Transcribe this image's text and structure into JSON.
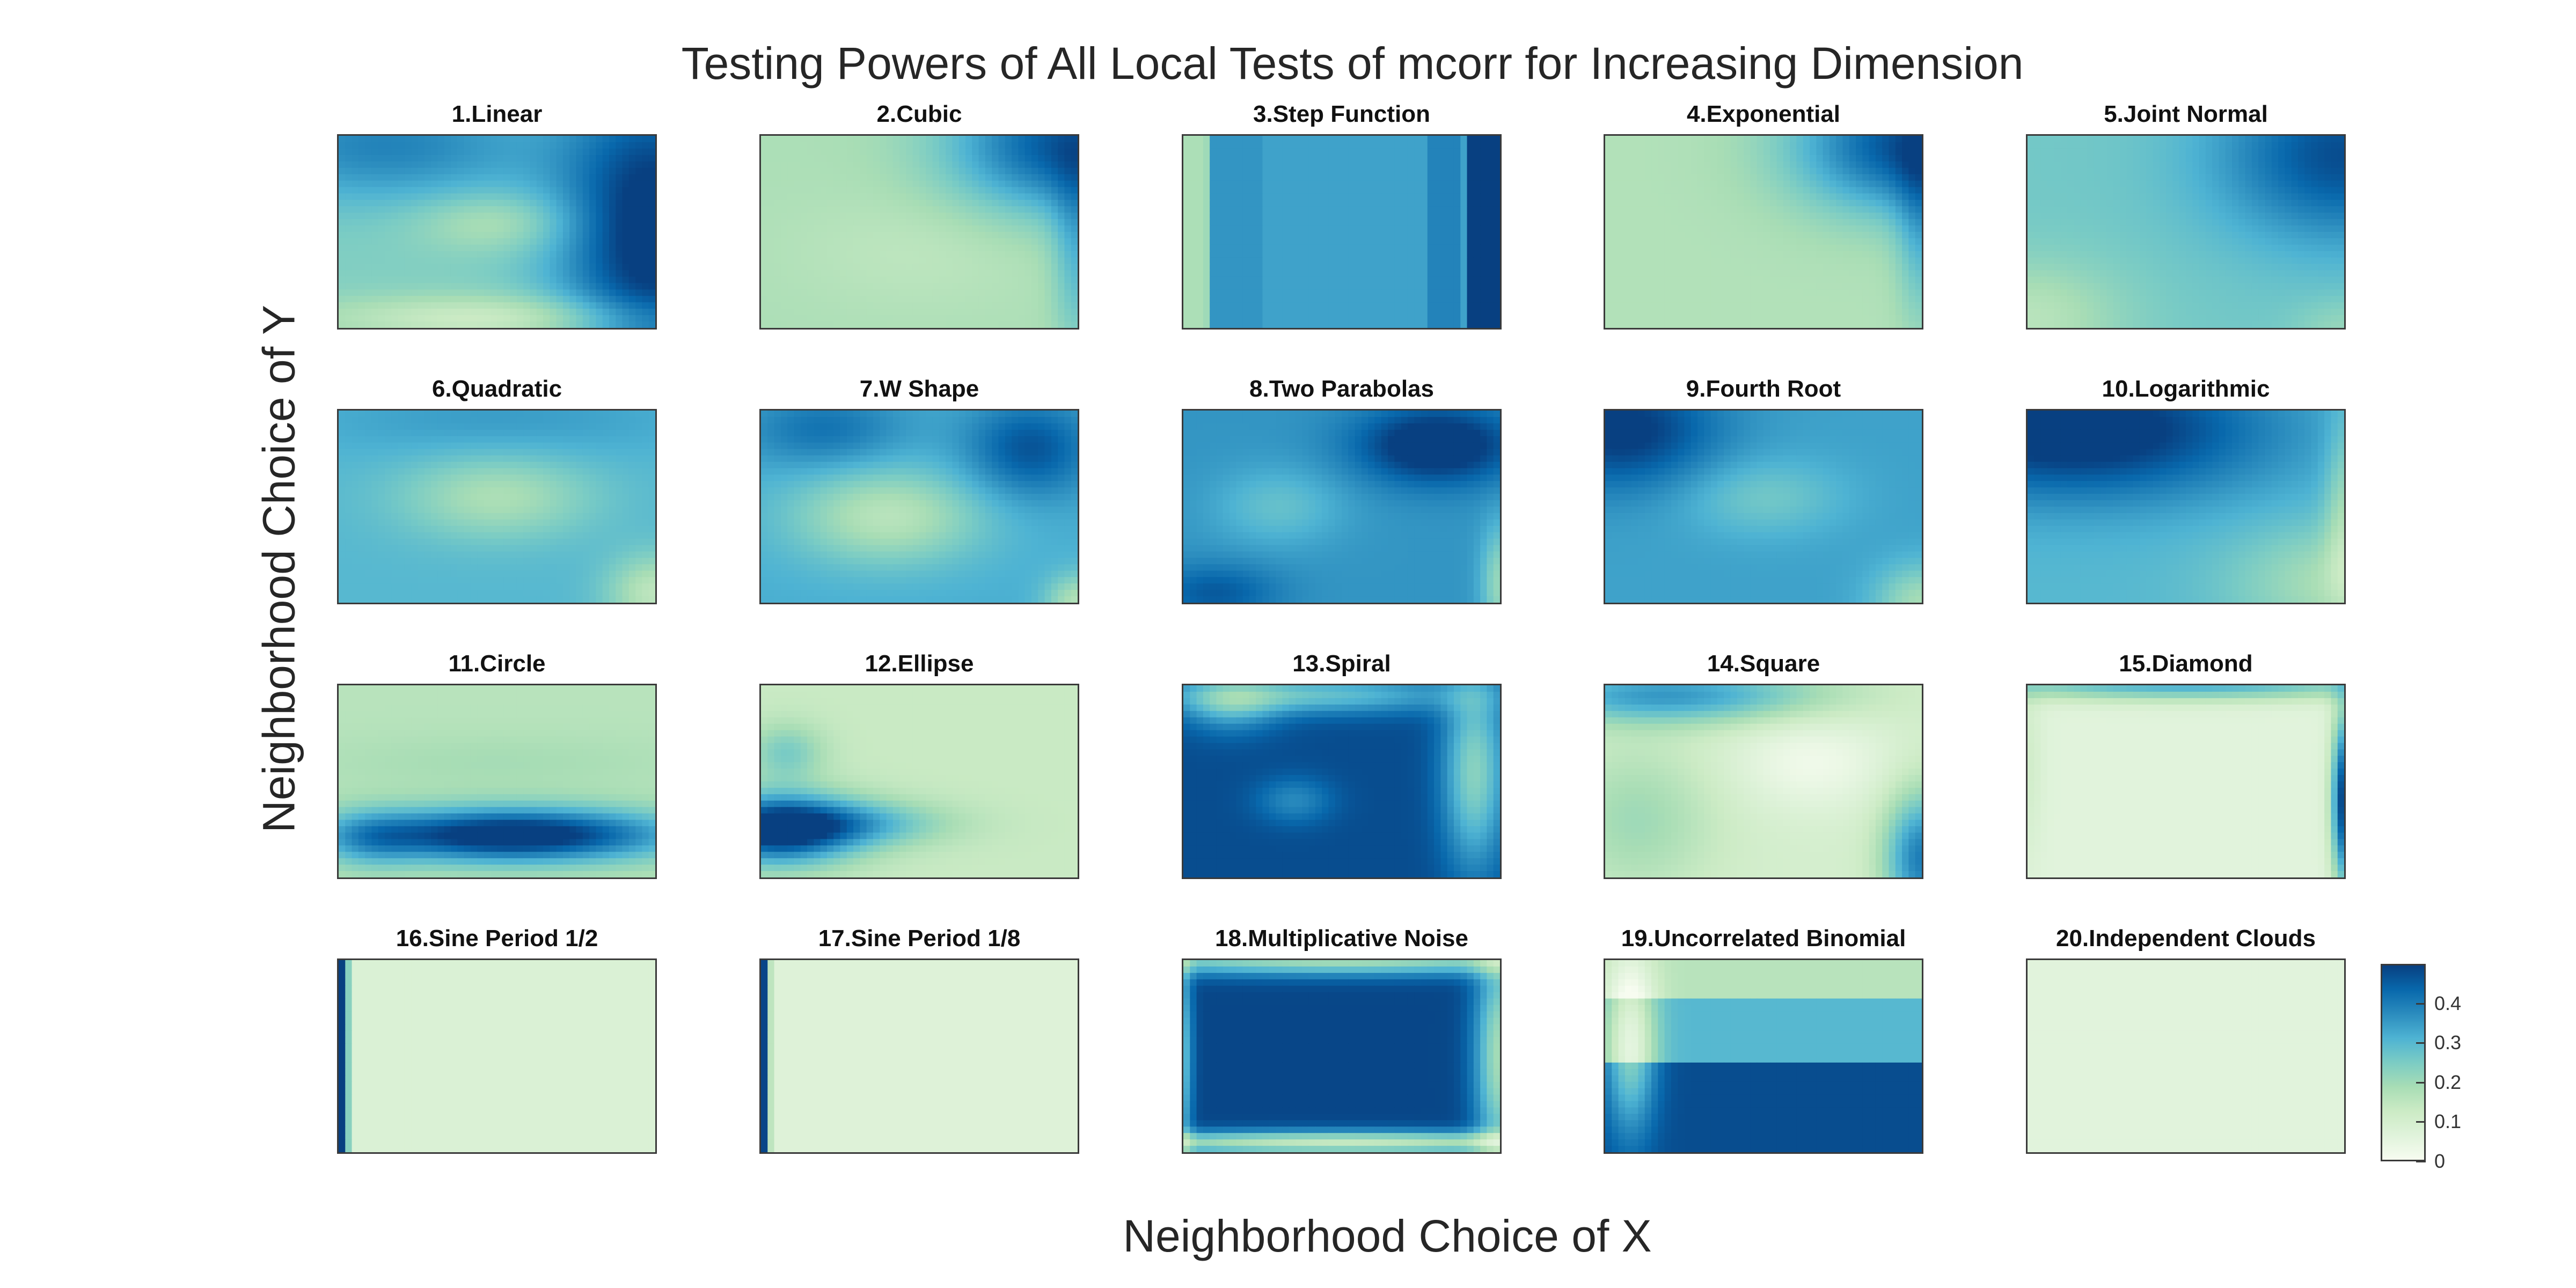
{
  "chart_data": {
    "type": "heatmap",
    "title": "Testing Powers of All Local Tests of mcorr for Increasing Dimension",
    "xlabel": "Neighborhood Choice of X",
    "ylabel": "Neighborhood Choice of Y",
    "colormap": [
      "#f7fcf0",
      "#e0f3db",
      "#ccebc5",
      "#a8ddb5",
      "#7bccc4",
      "#4eb3d3",
      "#2b8cbe",
      "#0868ac",
      "#084081"
    ],
    "colorbar": {
      "range": [
        0,
        0.5
      ],
      "ticks": [
        "0",
        "0.1",
        "0.2",
        "0.3",
        "0.4"
      ]
    },
    "panels": [
      {
        "title": "1.Linear",
        "base": 0.24,
        "blobs": [
          {
            "x": 1.0,
            "y": 0.5,
            "rx": 0.3,
            "ry": 0.8,
            "v": 0.3
          },
          {
            "x": 0.15,
            "y": 0.05,
            "rx": 0.5,
            "ry": 0.3,
            "v": 0.15
          },
          {
            "x": 0.5,
            "y": 0.45,
            "rx": 0.25,
            "ry": 0.15,
            "v": -0.08
          },
          {
            "x": 0.5,
            "y": 0.95,
            "rx": 0.6,
            "ry": 0.12,
            "v": -0.12
          }
        ]
      },
      {
        "title": "2.Cubic",
        "base": 0.18,
        "blobs": [
          {
            "x": 0.95,
            "y": 0.05,
            "rx": 0.35,
            "ry": 0.35,
            "v": 0.28
          },
          {
            "x": 1.0,
            "y": 0.6,
            "rx": 0.08,
            "ry": 0.5,
            "v": 0.12
          },
          {
            "x": 0.5,
            "y": 0.6,
            "rx": 0.4,
            "ry": 0.3,
            "v": -0.03
          }
        ]
      },
      {
        "title": "3.Step Function",
        "base": 0.34,
        "stripes": [
          {
            "x": 0.0,
            "w": 0.08,
            "v": -0.16
          },
          {
            "x": 0.06,
            "w": 0.18,
            "v": 0.02
          },
          {
            "x": 0.9,
            "w": 0.12,
            "v": 0.16
          },
          {
            "x": 0.78,
            "w": 0.1,
            "v": 0.05
          }
        ],
        "blobs": []
      },
      {
        "title": "4.Exponential",
        "base": 0.17,
        "blobs": [
          {
            "x": 0.95,
            "y": 0.05,
            "rx": 0.35,
            "ry": 0.35,
            "v": 0.3
          },
          {
            "x": 1.0,
            "y": 0.5,
            "rx": 0.08,
            "ry": 0.5,
            "v": 0.12
          }
        ]
      },
      {
        "title": "5.Joint Normal",
        "base": 0.26,
        "blobs": [
          {
            "x": 1.0,
            "y": 0.1,
            "rx": 0.4,
            "ry": 0.45,
            "v": 0.22
          },
          {
            "x": 0.0,
            "y": 0.95,
            "rx": 0.3,
            "ry": 0.3,
            "v": -0.1
          },
          {
            "x": 1.0,
            "y": 1.0,
            "rx": 0.15,
            "ry": 0.15,
            "v": -0.05
          }
        ]
      },
      {
        "title": "6.Quadratic",
        "base": 0.3,
        "blobs": [
          {
            "x": 0.5,
            "y": 0.45,
            "rx": 0.3,
            "ry": 0.22,
            "v": -0.12
          },
          {
            "x": 0.5,
            "y": 0.05,
            "rx": 0.6,
            "ry": 0.2,
            "v": 0.05
          },
          {
            "x": 1.0,
            "y": 0.95,
            "rx": 0.15,
            "ry": 0.2,
            "v": -0.15
          }
        ]
      },
      {
        "title": "7.W Shape",
        "base": 0.32,
        "blobs": [
          {
            "x": 0.4,
            "y": 0.55,
            "rx": 0.3,
            "ry": 0.25,
            "v": -0.16
          },
          {
            "x": 0.85,
            "y": 0.2,
            "rx": 0.2,
            "ry": 0.25,
            "v": 0.15
          },
          {
            "x": 0.2,
            "y": 0.1,
            "rx": 0.25,
            "ry": 0.2,
            "v": 0.1
          },
          {
            "x": 1.0,
            "y": 1.0,
            "rx": 0.1,
            "ry": 0.15,
            "v": -0.15
          }
        ]
      },
      {
        "title": "8.Two Parabolas",
        "base": 0.36,
        "blobs": [
          {
            "x": 0.8,
            "y": 0.18,
            "rx": 0.25,
            "ry": 0.2,
            "v": 0.2
          },
          {
            "x": 0.3,
            "y": 0.5,
            "rx": 0.2,
            "ry": 0.2,
            "v": -0.08
          },
          {
            "x": 0.1,
            "y": 0.95,
            "rx": 0.2,
            "ry": 0.15,
            "v": 0.1
          },
          {
            "x": 1.0,
            "y": 0.9,
            "rx": 0.06,
            "ry": 0.3,
            "v": -0.15
          }
        ]
      },
      {
        "title": "9.Fourth Root",
        "base": 0.34,
        "blobs": [
          {
            "x": 0.05,
            "y": 0.1,
            "rx": 0.3,
            "ry": 0.3,
            "v": 0.18
          },
          {
            "x": 0.5,
            "y": 0.45,
            "rx": 0.25,
            "ry": 0.2,
            "v": -0.08
          },
          {
            "x": 1.0,
            "y": 1.0,
            "rx": 0.15,
            "ry": 0.2,
            "v": -0.15
          }
        ]
      },
      {
        "title": "10.Logarithmic",
        "base": 0.3,
        "blobs": [
          {
            "x": 0.15,
            "y": 0.1,
            "rx": 0.6,
            "ry": 0.35,
            "v": 0.25
          },
          {
            "x": 1.0,
            "y": 0.9,
            "rx": 0.35,
            "ry": 0.3,
            "v": -0.12
          },
          {
            "x": 1.0,
            "y": 0.5,
            "rx": 0.06,
            "ry": 0.5,
            "v": -0.1
          }
        ]
      },
      {
        "title": "11.Circle",
        "base": 0.16,
        "blobs": [
          {
            "x": 0.55,
            "y": 0.78,
            "rx": 0.5,
            "ry": 0.14,
            "v": 0.4
          },
          {
            "x": 0.1,
            "y": 0.8,
            "rx": 0.15,
            "ry": 0.15,
            "v": 0.1
          },
          {
            "x": 0.5,
            "y": 0.4,
            "rx": 0.6,
            "ry": 0.15,
            "v": 0.03
          }
        ]
      },
      {
        "title": "12.Ellipse",
        "base": 0.13,
        "blobs": [
          {
            "x": 0.05,
            "y": 0.75,
            "rx": 0.25,
            "ry": 0.18,
            "v": 0.4
          },
          {
            "x": 0.3,
            "y": 0.72,
            "rx": 0.3,
            "ry": 0.12,
            "v": 0.15
          },
          {
            "x": 0.08,
            "y": 0.35,
            "rx": 0.12,
            "ry": 0.15,
            "v": 0.12
          }
        ]
      },
      {
        "title": "13.Spiral",
        "base": 0.48,
        "blobs": [
          {
            "x": 0.35,
            "y": 0.6,
            "rx": 0.12,
            "ry": 0.12,
            "v": -0.1
          },
          {
            "x": 0.4,
            "y": 0.05,
            "rx": 0.5,
            "ry": 0.1,
            "v": -0.2
          },
          {
            "x": 0.92,
            "y": 0.45,
            "rx": 0.1,
            "ry": 0.5,
            "v": -0.25
          },
          {
            "x": 0.15,
            "y": 0.1,
            "rx": 0.15,
            "ry": 0.15,
            "v": -0.15
          }
        ]
      },
      {
        "title": "14.Square",
        "base": 0.1,
        "blobs": [
          {
            "x": 0.2,
            "y": 0.05,
            "rx": 0.5,
            "ry": 0.15,
            "v": 0.25
          },
          {
            "x": 1.0,
            "y": 0.9,
            "rx": 0.12,
            "ry": 0.35,
            "v": 0.3
          },
          {
            "x": 0.1,
            "y": 0.7,
            "rx": 0.25,
            "ry": 0.4,
            "v": 0.1
          },
          {
            "x": 0.65,
            "y": 0.4,
            "rx": 0.25,
            "ry": 0.25,
            "v": -0.08
          }
        ]
      },
      {
        "title": "15.Diamond",
        "base": 0.06,
        "blobs": [
          {
            "x": 0.5,
            "y": 0.0,
            "rx": 0.7,
            "ry": 0.08,
            "v": 0.25
          },
          {
            "x": 1.0,
            "y": 0.6,
            "rx": 0.04,
            "ry": 0.45,
            "v": 0.45
          },
          {
            "x": 0.0,
            "y": 0.4,
            "rx": 0.05,
            "ry": 0.5,
            "v": 0.05
          }
        ]
      },
      {
        "title": "16.Sine Period 1/2",
        "base": 0.08,
        "stripes": [
          {
            "x": 0.0,
            "w": 0.025,
            "v": 0.42
          },
          {
            "x": 0.025,
            "w": 0.02,
            "v": 0.15
          }
        ],
        "blobs": []
      },
      {
        "title": "17.Sine Period 1/8",
        "base": 0.07,
        "stripes": [
          {
            "x": 0.0,
            "w": 0.012,
            "v": 0.42
          },
          {
            "x": 0.012,
            "w": 0.02,
            "v": 0.08
          }
        ],
        "blobs": []
      },
      {
        "title": "18.Multiplicative Noise",
        "base": 0.49,
        "blobs": [
          {
            "x": 0.5,
            "y": 0.0,
            "rx": 0.9,
            "ry": 0.08,
            "v": -0.3
          },
          {
            "x": 0.5,
            "y": 0.95,
            "rx": 0.9,
            "ry": 0.06,
            "v": -0.35
          },
          {
            "x": 1.0,
            "y": 0.5,
            "rx": 0.08,
            "ry": 0.6,
            "v": -0.3
          },
          {
            "x": 0.0,
            "y": 0.5,
            "rx": 0.03,
            "ry": 0.6,
            "v": -0.2
          }
        ]
      },
      {
        "title": "19.Uncorrelated Binomial",
        "base": 0.2,
        "bands": [
          {
            "y": 0.0,
            "h": 0.2,
            "v": 0.16
          },
          {
            "y": 0.2,
            "h": 0.35,
            "v": 0.3
          },
          {
            "y": 0.55,
            "h": 0.45,
            "v": 0.48
          }
        ],
        "blobs": [
          {
            "x": 0.08,
            "y": 0.45,
            "rx": 0.08,
            "ry": 0.45,
            "v": -0.25
          }
        ]
      },
      {
        "title": "20.Independent Clouds",
        "base": 0.06,
        "blobs": []
      }
    ]
  }
}
